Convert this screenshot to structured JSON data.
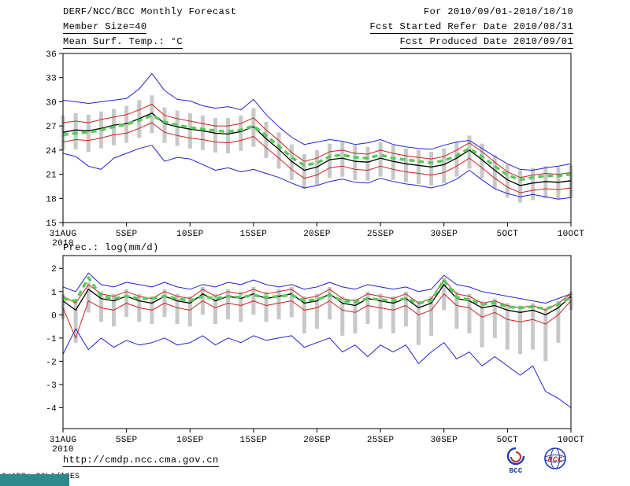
{
  "header": {
    "title": "DERF/NCC/BCC Monthly Forecast",
    "member_size": "Member Size=40",
    "forecast_period": "For 2010/09/01-2010/10/10",
    "refer_date": "Fcst Started Refer Date 2010/08/31",
    "produced_date": "Fcst Produced Date 2010/09/01"
  },
  "footer": {
    "url": "http://cmdp.ncc.cma.gov.cn",
    "credit": "GrADS: COLA/IGES",
    "logos": [
      {
        "label": "BCC"
      },
      {
        "label": "NCC"
      }
    ]
  },
  "colors": {
    "blue": "#2222cc",
    "red": "#cc2222",
    "black": "#000000",
    "green": "#55cc55",
    "bar": "#c8c8c8"
  },
  "chart_data": [
    {
      "type": "line",
      "name": "temperature",
      "title": "Mean Surf. Temp.: °C",
      "ylabel": "",
      "ylim": [
        15,
        36
      ],
      "yticks": [
        36,
        33,
        30,
        27,
        24,
        21,
        18,
        15
      ],
      "days": 41,
      "xticks": [
        {
          "i": 0,
          "label": "31AUG",
          "sub": "2010"
        },
        {
          "i": 5,
          "label": "5SEP"
        },
        {
          "i": 10,
          "label": "10SEP"
        },
        {
          "i": 15,
          "label": "15SEP"
        },
        {
          "i": 20,
          "label": "20SEP"
        },
        {
          "i": 25,
          "label": "25SEP"
        },
        {
          "i": 30,
          "label": "30SEP"
        },
        {
          "i": 35,
          "label": "5OCT"
        },
        {
          "i": 40,
          "label": "10OCT"
        }
      ],
      "bars": {
        "top": [
          28.3,
          28.6,
          28.4,
          28.8,
          29.1,
          29.5,
          30.2,
          30.8,
          29.3,
          28.9,
          28.6,
          28.3,
          28.0,
          28.0,
          28.3,
          29.2,
          27.5,
          26.2,
          24.7,
          23.5,
          24.0,
          24.8,
          25.0,
          24.6,
          24.4,
          25.0,
          24.6,
          24.2,
          24.0,
          23.8,
          24.2,
          25.0,
          25.8,
          24.8,
          23.4,
          22.2,
          21.5,
          21.8,
          22.0,
          21.9,
          22.1
        ],
        "bottom": [
          24.0,
          24.1,
          23.8,
          24.2,
          24.6,
          24.9,
          25.5,
          26.1,
          24.9,
          24.5,
          24.2,
          24.0,
          23.7,
          23.6,
          23.9,
          24.4,
          23.0,
          21.7,
          20.3,
          19.2,
          19.6,
          20.5,
          20.7,
          20.3,
          20.2,
          20.7,
          20.3,
          20.0,
          19.8,
          19.6,
          19.9,
          20.7,
          21.7,
          20.5,
          19.2,
          18.1,
          17.5,
          17.8,
          18.0,
          17.9,
          18.1
        ]
      },
      "series": [
        {
          "name": "ensemble-min",
          "color": "blue",
          "width": 1,
          "dash": "",
          "values": [
            23.6,
            23.2,
            22.0,
            21.6,
            23.0,
            23.6,
            24.2,
            24.6,
            22.6,
            23.1,
            22.9,
            22.2,
            21.5,
            21.8,
            21.3,
            21.6,
            21.1,
            20.6,
            19.9,
            19.3,
            19.6,
            20.1,
            20.4,
            20.0,
            19.9,
            20.5,
            20.1,
            19.8,
            19.6,
            19.3,
            19.7,
            20.4,
            21.5,
            20.3,
            19.2,
            18.6,
            18.2,
            18.5,
            18.2,
            17.9,
            18.1
          ]
        },
        {
          "name": "ensemble-max",
          "color": "blue",
          "width": 1,
          "dash": "",
          "values": [
            30.2,
            30.0,
            29.8,
            30.0,
            30.2,
            30.4,
            31.6,
            33.5,
            31.4,
            30.3,
            30.1,
            29.5,
            29.2,
            29.4,
            29.0,
            30.3,
            28.4,
            26.9,
            25.6,
            24.7,
            25.0,
            25.3,
            25.1,
            24.7,
            24.9,
            25.3,
            24.7,
            24.4,
            24.2,
            24.1,
            24.6,
            25.0,
            25.2,
            24.2,
            23.2,
            22.3,
            21.6,
            21.5,
            21.8,
            22.0,
            22.3
          ]
        },
        {
          "name": "lower-quartile",
          "color": "red",
          "width": 1,
          "dash": "",
          "values": [
            25.0,
            25.3,
            25.2,
            25.5,
            25.9,
            26.1,
            26.7,
            27.4,
            26.2,
            25.8,
            25.5,
            25.3,
            25.0,
            24.9,
            25.2,
            25.7,
            24.3,
            23.0,
            21.6,
            20.5,
            20.9,
            21.8,
            22.0,
            21.6,
            21.5,
            22.0,
            21.6,
            21.3,
            21.1,
            20.9,
            21.2,
            22.0,
            23.0,
            21.8,
            20.5,
            19.4,
            18.7,
            19.0,
            19.2,
            19.1,
            19.3
          ]
        },
        {
          "name": "upper-quartile",
          "color": "red",
          "width": 1,
          "dash": "",
          "values": [
            27.4,
            27.6,
            27.4,
            27.8,
            28.1,
            28.4,
            29.0,
            29.7,
            28.3,
            27.9,
            27.6,
            27.3,
            27.0,
            27.0,
            27.3,
            28.0,
            26.5,
            25.2,
            23.7,
            22.6,
            23.0,
            23.8,
            24.0,
            23.6,
            23.5,
            24.0,
            23.6,
            23.3,
            23.1,
            22.9,
            23.2,
            24.0,
            24.9,
            23.8,
            22.5,
            21.3,
            20.6,
            20.9,
            21.1,
            21.0,
            21.2
          ]
        },
        {
          "name": "ensemble-mean",
          "color": "black",
          "width": 1.3,
          "dash": "",
          "values": [
            26.2,
            26.5,
            26.4,
            26.7,
            27.1,
            27.3,
            27.9,
            28.6,
            27.3,
            26.9,
            26.6,
            26.4,
            26.1,
            26.0,
            26.3,
            26.9,
            25.4,
            24.1,
            22.6,
            21.5,
            21.9,
            22.8,
            23.0,
            22.6,
            22.5,
            23.0,
            22.6,
            22.3,
            22.1,
            21.9,
            22.2,
            23.0,
            24.0,
            22.8,
            21.5,
            20.3,
            19.6,
            19.9,
            20.1,
            20.0,
            20.2
          ]
        },
        {
          "name": "climatology",
          "color": "green",
          "width": 3.5,
          "dash": "7 5",
          "values": [
            25.9,
            26.1,
            26.2,
            26.5,
            26.9,
            27.2,
            27.7,
            28.3,
            27.5,
            27.1,
            26.8,
            26.6,
            26.4,
            26.3,
            26.5,
            27.0,
            25.8,
            24.5,
            23.1,
            22.1,
            22.4,
            23.2,
            23.4,
            23.1,
            23.0,
            23.4,
            23.0,
            22.8,
            22.6,
            22.4,
            22.7,
            23.3,
            24.2,
            23.2,
            22.0,
            20.9,
            20.3,
            20.6,
            20.8,
            20.8,
            21.0
          ]
        }
      ]
    },
    {
      "type": "line",
      "name": "precipitation",
      "title": "Prec.: log(mm/d)",
      "ylabel": "",
      "ylim": [
        -4.9,
        2.55
      ],
      "yticks": [
        2,
        1,
        0,
        -1,
        -2,
        -3,
        -4
      ],
      "days": 41,
      "xticks": [
        {
          "i": 0,
          "label": "31AUG",
          "sub": "2010"
        },
        {
          "i": 5,
          "label": "5SEP"
        },
        {
          "i": 10,
          "label": "10SEP"
        },
        {
          "i": 15,
          "label": "15SEP"
        },
        {
          "i": 20,
          "label": "20SEP"
        },
        {
          "i": 25,
          "label": "25SEP"
        },
        {
          "i": 30,
          "label": "30SEP"
        },
        {
          "i": 35,
          "label": "5OCT"
        },
        {
          "i": 40,
          "label": "10OCT"
        }
      ],
      "bars": {
        "top": [
          0.9,
          0.6,
          1.4,
          1.0,
          0.9,
          1.1,
          0.9,
          0.8,
          1.1,
          0.9,
          0.8,
          1.2,
          0.9,
          1.1,
          1.0,
          1.2,
          1.0,
          1.1,
          1.2,
          0.8,
          0.9,
          1.2,
          0.8,
          0.7,
          1.0,
          0.9,
          0.8,
          1.0,
          0.6,
          0.8,
          1.6,
          1.0,
          0.9,
          0.6,
          0.7,
          0.5,
          0.4,
          0.5,
          0.3,
          0.6,
          1.0
        ],
        "bottom": [
          -0.2,
          -1.2,
          0.1,
          -0.3,
          -0.5,
          -0.1,
          -0.3,
          -0.4,
          -0.1,
          -0.4,
          -0.5,
          0.0,
          -0.4,
          -0.2,
          -0.3,
          0.0,
          -0.3,
          -0.2,
          -0.1,
          -0.8,
          -0.6,
          -0.2,
          -0.9,
          -0.8,
          -0.4,
          -0.6,
          -0.8,
          -0.5,
          -1.3,
          -0.9,
          0.2,
          -0.6,
          -0.8,
          -1.4,
          -1.0,
          -1.5,
          -1.7,
          -1.5,
          -2.0,
          -1.2,
          0.2
        ]
      },
      "series": [
        {
          "name": "ensemble-min",
          "color": "blue",
          "width": 1,
          "dash": "",
          "values": [
            -1.7,
            -0.6,
            -1.5,
            -1.0,
            -1.4,
            -1.1,
            -1.3,
            -1.2,
            -1.0,
            -1.3,
            -1.2,
            -0.9,
            -1.3,
            -1.0,
            -1.2,
            -0.9,
            -1.1,
            -1.0,
            -0.9,
            -1.4,
            -1.2,
            -1.0,
            -1.6,
            -1.3,
            -1.8,
            -1.3,
            -1.6,
            -1.3,
            -2.1,
            -1.6,
            -1.2,
            -1.9,
            -1.6,
            -2.2,
            -1.8,
            -2.2,
            -2.6,
            -2.2,
            -3.3,
            -3.6,
            -4.0
          ]
        },
        {
          "name": "ensemble-max",
          "color": "blue",
          "width": 1,
          "dash": "",
          "values": [
            1.2,
            1.0,
            1.8,
            1.3,
            1.2,
            1.4,
            1.3,
            1.2,
            1.4,
            1.2,
            1.1,
            1.3,
            1.2,
            1.4,
            1.3,
            1.5,
            1.3,
            1.2,
            1.3,
            1.1,
            1.2,
            1.4,
            1.2,
            1.1,
            1.3,
            1.2,
            1.1,
            1.2,
            1.0,
            1.1,
            1.7,
            1.3,
            1.2,
            1.0,
            0.9,
            0.8,
            0.7,
            0.6,
            0.5,
            0.7,
            0.9
          ]
        },
        {
          "name": "lower-quartile",
          "color": "red",
          "width": 1,
          "dash": "",
          "values": [
            0.3,
            -1.0,
            0.6,
            0.3,
            0.2,
            0.5,
            0.3,
            0.2,
            0.5,
            0.3,
            0.2,
            0.6,
            0.3,
            0.5,
            0.4,
            0.6,
            0.4,
            0.5,
            0.6,
            0.2,
            0.3,
            0.6,
            0.2,
            0.1,
            0.4,
            0.3,
            0.2,
            0.4,
            0.0,
            0.2,
            0.9,
            0.4,
            0.3,
            -0.1,
            0.1,
            -0.2,
            -0.3,
            -0.2,
            -0.4,
            0.0,
            0.6
          ]
        },
        {
          "name": "upper-quartile",
          "color": "red",
          "width": 1,
          "dash": "",
          "values": [
            0.8,
            0.5,
            1.3,
            0.9,
            0.8,
            1.0,
            0.8,
            0.7,
            1.0,
            0.8,
            0.7,
            1.1,
            0.8,
            1.0,
            0.9,
            1.1,
            0.9,
            1.0,
            1.1,
            0.7,
            0.8,
            1.1,
            0.7,
            0.6,
            0.9,
            0.8,
            0.7,
            0.9,
            0.5,
            0.7,
            1.5,
            0.9,
            0.8,
            0.5,
            0.6,
            0.4,
            0.3,
            0.4,
            0.2,
            0.5,
            0.9
          ]
        },
        {
          "name": "ensemble-mean",
          "color": "black",
          "width": 1.3,
          "dash": "",
          "values": [
            0.6,
            0.2,
            1.1,
            0.7,
            0.6,
            0.8,
            0.6,
            0.5,
            0.8,
            0.6,
            0.5,
            0.9,
            0.6,
            0.8,
            0.7,
            0.9,
            0.7,
            0.8,
            0.9,
            0.5,
            0.6,
            0.9,
            0.5,
            0.4,
            0.7,
            0.6,
            0.5,
            0.7,
            0.3,
            0.5,
            1.3,
            0.7,
            0.6,
            0.3,
            0.4,
            0.2,
            0.1,
            0.2,
            0.0,
            0.3,
            0.8
          ]
        },
        {
          "name": "climatology",
          "color": "green",
          "width": 3.5,
          "dash": "7 5",
          "values": [
            0.7,
            0.6,
            1.6,
            0.8,
            0.7,
            0.8,
            0.7,
            0.7,
            0.8,
            0.7,
            0.6,
            0.8,
            0.7,
            0.8,
            0.75,
            0.85,
            0.75,
            0.8,
            0.85,
            0.6,
            0.65,
            0.85,
            0.6,
            0.55,
            0.7,
            0.65,
            0.6,
            0.7,
            0.5,
            0.6,
            1.5,
            0.75,
            0.65,
            0.45,
            0.5,
            0.35,
            0.3,
            0.35,
            0.25,
            0.45,
            0.75
          ]
        }
      ]
    }
  ]
}
